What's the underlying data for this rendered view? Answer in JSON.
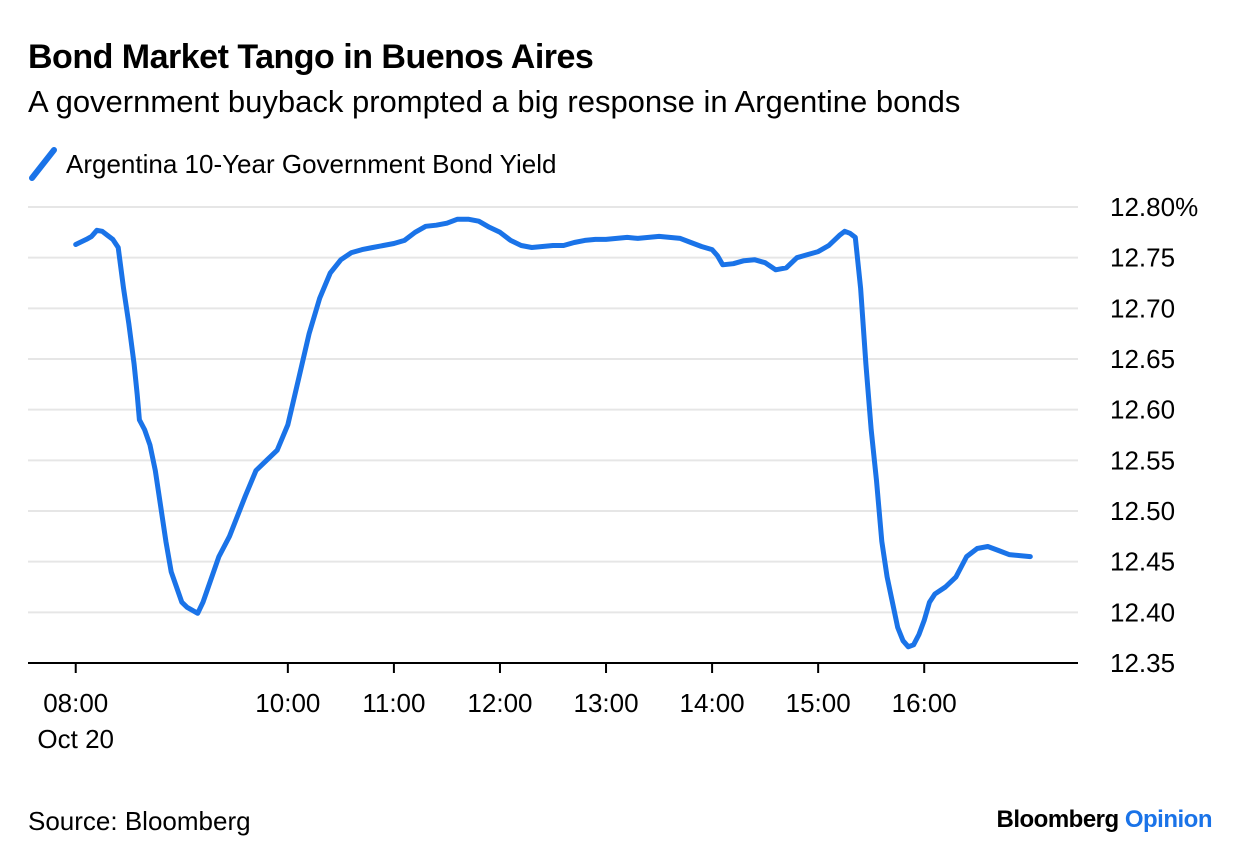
{
  "header": {
    "title": "Bond Market Tango in Buenos Aires",
    "subtitle": "A government buyback prompted a big response in Argentine bonds"
  },
  "legend": {
    "label": "Argentina 10-Year Government Bond Yield",
    "color": "#1a73e8"
  },
  "footer": {
    "source": "Source: Bloomberg",
    "brand_main": "Bloomberg",
    "brand_accent": "Opinion"
  },
  "chart_data": {
    "type": "line",
    "title": "Bond Market Tango in Buenos Aires",
    "subtitle": "A government buyback prompted a big response in Argentine bonds",
    "xlabel": "",
    "ylabel": "",
    "ylim": [
      12.35,
      12.8
    ],
    "xlim": [
      7.55,
      17.45
    ],
    "y_ticks": [
      12.35,
      12.4,
      12.45,
      12.5,
      12.55,
      12.6,
      12.65,
      12.7,
      12.75,
      12.8
    ],
    "y_tick_labels": [
      "12.35",
      "12.40",
      "12.45",
      "12.50",
      "12.55",
      "12.60",
      "12.65",
      "12.70",
      "12.75",
      "12.80%"
    ],
    "x_ticks": [
      {
        "value": 8,
        "label": "08:00",
        "sublabel": "Oct 20"
      },
      {
        "value": 10,
        "label": "10:00"
      },
      {
        "value": 11,
        "label": "11:00"
      },
      {
        "value": 12,
        "label": "12:00"
      },
      {
        "value": 13,
        "label": "13:00"
      },
      {
        "value": 14,
        "label": "14:00"
      },
      {
        "value": 15,
        "label": "15:00"
      },
      {
        "value": 16,
        "label": "16:00"
      }
    ],
    "grid": true,
    "series": [
      {
        "name": "Argentina 10-Year Government Bond Yield",
        "color": "#1a73e8",
        "x": [
          8.0,
          8.1,
          8.15,
          8.2,
          8.25,
          8.3,
          8.35,
          8.4,
          8.45,
          8.5,
          8.55,
          8.58,
          8.6,
          8.65,
          8.7,
          8.75,
          8.8,
          8.85,
          8.9,
          8.95,
          9.0,
          9.05,
          9.1,
          9.15,
          9.2,
          9.25,
          9.3,
          9.35,
          9.45,
          9.6,
          9.7,
          9.8,
          9.9,
          10.0,
          10.1,
          10.2,
          10.3,
          10.4,
          10.5,
          10.6,
          10.7,
          10.8,
          10.9,
          11.0,
          11.1,
          11.2,
          11.3,
          11.4,
          11.5,
          11.6,
          11.7,
          11.8,
          11.9,
          12.0,
          12.1,
          12.2,
          12.3,
          12.4,
          12.5,
          12.6,
          12.7,
          12.8,
          12.9,
          13.0,
          13.1,
          13.2,
          13.3,
          13.4,
          13.5,
          13.6,
          13.7,
          13.8,
          13.9,
          14.0,
          14.05,
          14.1,
          14.2,
          14.3,
          14.4,
          14.5,
          14.6,
          14.7,
          14.8,
          14.9,
          15.0,
          15.1,
          15.2,
          15.25,
          15.3,
          15.35,
          15.4,
          15.45,
          15.5,
          15.55,
          15.6,
          15.65,
          15.7,
          15.75,
          15.8,
          15.85,
          15.9,
          15.95,
          16.0,
          16.05,
          16.1,
          16.2,
          16.3,
          16.4,
          16.5,
          16.6,
          16.7,
          16.8,
          16.9,
          17.0
        ],
        "values": [
          12.763,
          12.768,
          12.771,
          12.777,
          12.776,
          12.772,
          12.768,
          12.76,
          12.72,
          12.685,
          12.645,
          12.615,
          12.59,
          12.58,
          12.565,
          12.54,
          12.505,
          12.47,
          12.44,
          12.425,
          12.41,
          12.405,
          12.402,
          12.399,
          12.41,
          12.425,
          12.44,
          12.455,
          12.475,
          12.515,
          12.54,
          12.55,
          12.56,
          12.585,
          12.63,
          12.675,
          12.71,
          12.735,
          12.748,
          12.755,
          12.758,
          12.76,
          12.762,
          12.764,
          12.767,
          12.775,
          12.781,
          12.782,
          12.784,
          12.788,
          12.788,
          12.786,
          12.78,
          12.775,
          12.767,
          12.762,
          12.76,
          12.761,
          12.762,
          12.762,
          12.765,
          12.767,
          12.768,
          12.768,
          12.769,
          12.77,
          12.769,
          12.77,
          12.771,
          12.77,
          12.769,
          12.765,
          12.761,
          12.758,
          12.752,
          12.743,
          12.744,
          12.747,
          12.748,
          12.745,
          12.738,
          12.74,
          12.75,
          12.753,
          12.756,
          12.762,
          12.772,
          12.776,
          12.774,
          12.77,
          12.72,
          12.645,
          12.58,
          12.53,
          12.47,
          12.435,
          12.41,
          12.385,
          12.372,
          12.366,
          12.368,
          12.378,
          12.392,
          12.41,
          12.418,
          12.425,
          12.435,
          12.455,
          12.463,
          12.465,
          12.461,
          12.457,
          12.456,
          12.455
        ]
      }
    ]
  }
}
